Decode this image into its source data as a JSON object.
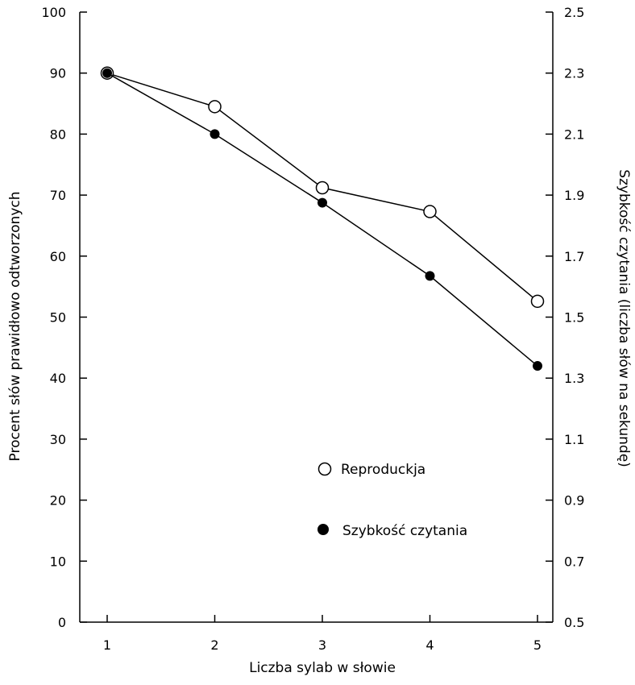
{
  "chart_data": {
    "type": "line",
    "title": "",
    "xlabel": "Liczba sylab w słowie",
    "ylabel_left": "Procent słów prawidłowo odtworzonych",
    "ylabel_right": "Szybkość czytania (liczba słów na sekundę)",
    "x": [
      1,
      2,
      3,
      4,
      5
    ],
    "x_ticks": [
      "1",
      "2",
      "3",
      "4",
      "5"
    ],
    "y_left_ticks": [
      "0",
      "10",
      "20",
      "30",
      "40",
      "50",
      "60",
      "70",
      "80",
      "90",
      "100"
    ],
    "y_right_ticks": [
      "0.5",
      "0.7",
      "0.9",
      "1.1",
      "1.3",
      "1.5",
      "1.7",
      "1.9",
      "2.1",
      "2.3",
      "2.5"
    ],
    "ylim_left": [
      0,
      100
    ],
    "ylim_right": [
      0.5,
      2.5
    ],
    "grid": false,
    "legend_position": "center",
    "series": [
      {
        "name": "Reproduckja",
        "axis": "left",
        "marker": "open-circle",
        "values": [
          90,
          84.5,
          71.2,
          67.3,
          52.6
        ]
      },
      {
        "name": "Szybkość czytania",
        "axis": "right",
        "marker": "filled-circle",
        "values": [
          2.3,
          2.1,
          1.875,
          1.635,
          1.34
        ]
      }
    ]
  }
}
